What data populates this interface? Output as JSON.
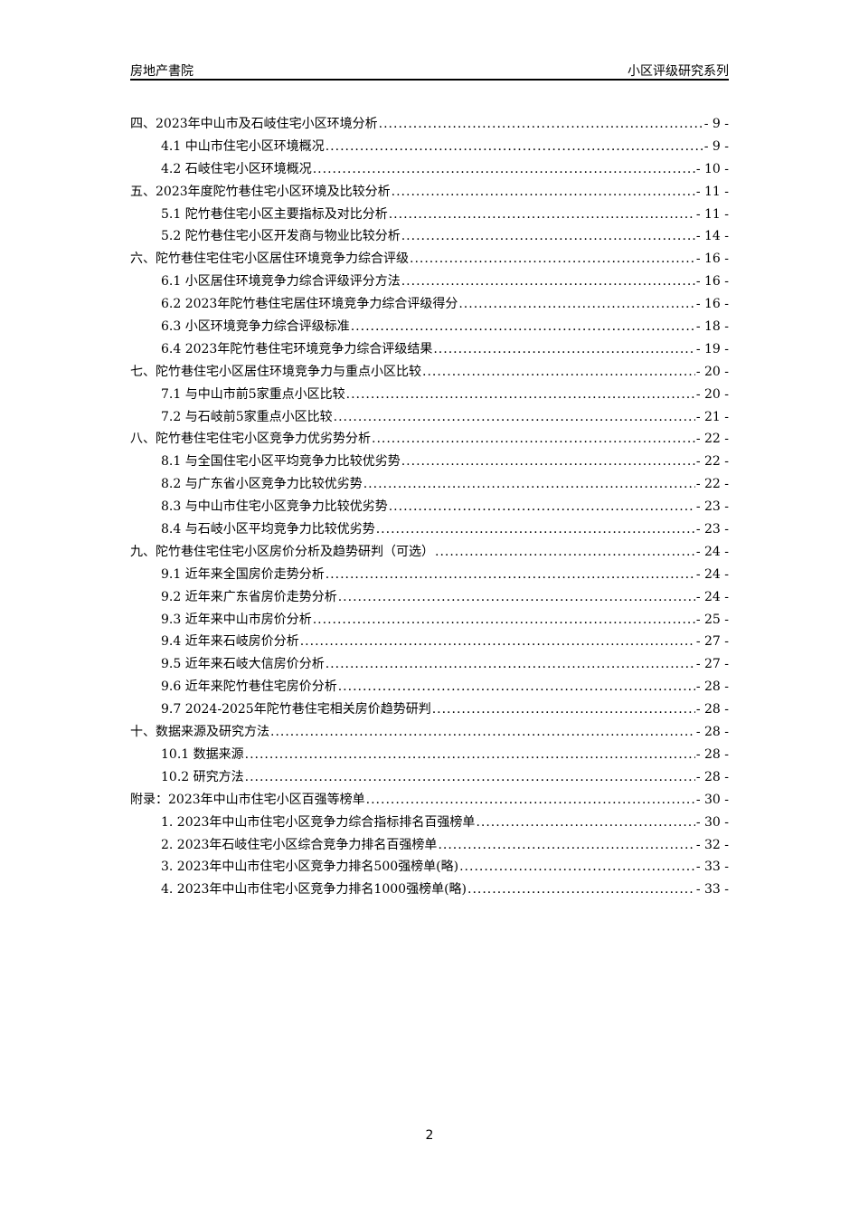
{
  "header": {
    "left": "房地产書院",
    "right": "小区评级研究系列"
  },
  "toc": [
    {
      "level": 1,
      "title": "四、2023年中山市及石岐住宅小区环境分析",
      "page": "- 9 -"
    },
    {
      "level": 2,
      "title": "4.1 中山市住宅小区环境概况",
      "page": "- 9 -"
    },
    {
      "level": 2,
      "title": "4.2 石岐住宅小区环境概况",
      "page": "- 10 -"
    },
    {
      "level": 1,
      "title": "五、2023年度陀竹巷住宅小区环境及比较分析",
      "page": "- 11 -"
    },
    {
      "level": 2,
      "title": "5.1 陀竹巷住宅小区主要指标及对比分析",
      "page": "- 11 -"
    },
    {
      "level": 2,
      "title": "5.2 陀竹巷住宅小区开发商与物业比较分析",
      "page": "- 14 -"
    },
    {
      "level": 1,
      "title": "六、陀竹巷住宅住宅小区居住环境竞争力综合评级",
      "page": "- 16 -"
    },
    {
      "level": 2,
      "title": "6.1 小区居住环境竞争力综合评级评分方法",
      "page": "- 16 -"
    },
    {
      "level": 2,
      "title": "6.2 2023年陀竹巷住宅居住环境竞争力综合评级得分",
      "page": "- 16 -"
    },
    {
      "level": 2,
      "title": "6.3 小区环境竞争力综合评级标准",
      "page": "- 18 -"
    },
    {
      "level": 2,
      "title": "6.4 2023年陀竹巷住宅环境竞争力综合评级结果",
      "page": "- 19 -"
    },
    {
      "level": 1,
      "title": "七、陀竹巷住宅小区居住环境竞争力与重点小区比较",
      "page": "- 20 -"
    },
    {
      "level": 2,
      "title": "7.1 与中山市前5家重点小区比较",
      "page": "- 20 -"
    },
    {
      "level": 2,
      "title": "7.2 与石岐前5家重点小区比较",
      "page": "- 21 -"
    },
    {
      "level": 1,
      "title": "八、陀竹巷住宅住宅小区竞争力优劣势分析",
      "page": "- 22 -"
    },
    {
      "level": 2,
      "title": "8.1 与全国住宅小区平均竞争力比较优劣势",
      "page": "- 22 -"
    },
    {
      "level": 2,
      "title": "8.2 与广东省小区竞争力比较优劣势",
      "page": "- 22 -"
    },
    {
      "level": 2,
      "title": "8.3 与中山市住宅小区竞争力比较优劣势",
      "page": "- 23 -"
    },
    {
      "level": 2,
      "title": "8.4 与石岐小区平均竞争力比较优劣势",
      "page": "- 23 -"
    },
    {
      "level": 1,
      "title": "九、陀竹巷住宅住宅小区房价分析及趋势研判（可选）",
      "page": "- 24 -"
    },
    {
      "level": 2,
      "title": "9.1 近年来全国房价走势分析",
      "page": "- 24 -"
    },
    {
      "level": 2,
      "title": "9.2 近年来广东省房价走势分析",
      "page": "- 24 -"
    },
    {
      "level": 2,
      "title": "9.3 近年来中山市房价分析",
      "page": "- 25 -"
    },
    {
      "level": 2,
      "title": "9.4 近年来石岐房价分析",
      "page": "- 27 -"
    },
    {
      "level": 2,
      "title": "9.5 近年来石岐大信房价分析",
      "page": "- 27 -"
    },
    {
      "level": 2,
      "title": "9.6 近年来陀竹巷住宅房价分析",
      "page": "- 28 -"
    },
    {
      "level": 2,
      "title": "9.7 2024-2025年陀竹巷住宅相关房价趋势研判",
      "page": "- 28 -"
    },
    {
      "level": 1,
      "title": "十、数据来源及研究方法",
      "page": "- 28 -"
    },
    {
      "level": 2,
      "title": "10.1 数据来源",
      "page": "- 28 -"
    },
    {
      "level": 2,
      "title": "10.2 研究方法",
      "page": "- 28 -"
    },
    {
      "level": 1,
      "title": "附录：2023年中山市住宅小区百强等榜单",
      "page": "- 30 -"
    },
    {
      "level": 2,
      "title": "1. 2023年中山市住宅小区竞争力综合指标排名百强榜单",
      "page": "- 30 -"
    },
    {
      "level": 2,
      "title": "2. 2023年石岐住宅小区综合竞争力排名百强榜单",
      "page": "- 32 -"
    },
    {
      "level": 2,
      "title": "3. 2023年中山市住宅小区竞争力排名500强榜单(略)",
      "page": "- 33 -"
    },
    {
      "level": 2,
      "title": "4. 2023年中山市住宅小区竞争力排名1000强榜单(略)",
      "page": "- 33 -"
    }
  ],
  "footer": {
    "page_number": "2"
  }
}
